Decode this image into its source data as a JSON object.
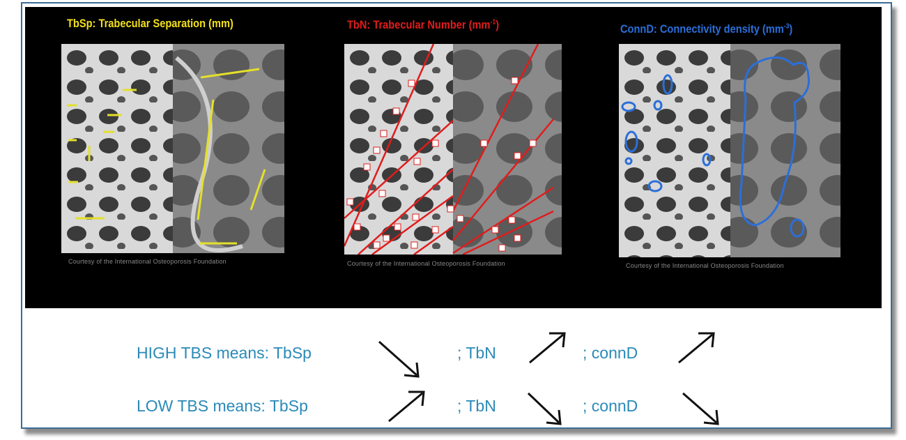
{
  "panels": [
    {
      "title": "TbSp: Trabecular Separation (mm)",
      "color": "#f3e01b",
      "credit": "Courtesy of the International Osteoporosis Foundation"
    },
    {
      "title_main": "TbN: Trabecular Number (mm",
      "title_sup": "-1",
      "title_end": ")",
      "color": "#e11c1c",
      "credit": "Courtesy of the International Osteoporosis Foundation"
    },
    {
      "title_main": "ConnD: Connectivity density (mm",
      "title_sup": "-3",
      "title_end": ")",
      "color": "#2b6fd9",
      "credit": "Courtesy of the International Osteoporosis Foundation"
    }
  ],
  "statements": {
    "high": {
      "label": "HIGH TBS means: TbSp",
      "tbn": "; TbN",
      "connd": "; connD",
      "trend": [
        "down",
        "up",
        "up"
      ]
    },
    "low": {
      "label": "LOW TBS means: TbSp",
      "tbn": "; TbN",
      "connd": "; connD",
      "trend": [
        "up",
        "down",
        "down"
      ]
    }
  },
  "colors": {
    "frame": "#3a6b96",
    "text": "#2a8ab8",
    "arrow_black": "#111111"
  }
}
